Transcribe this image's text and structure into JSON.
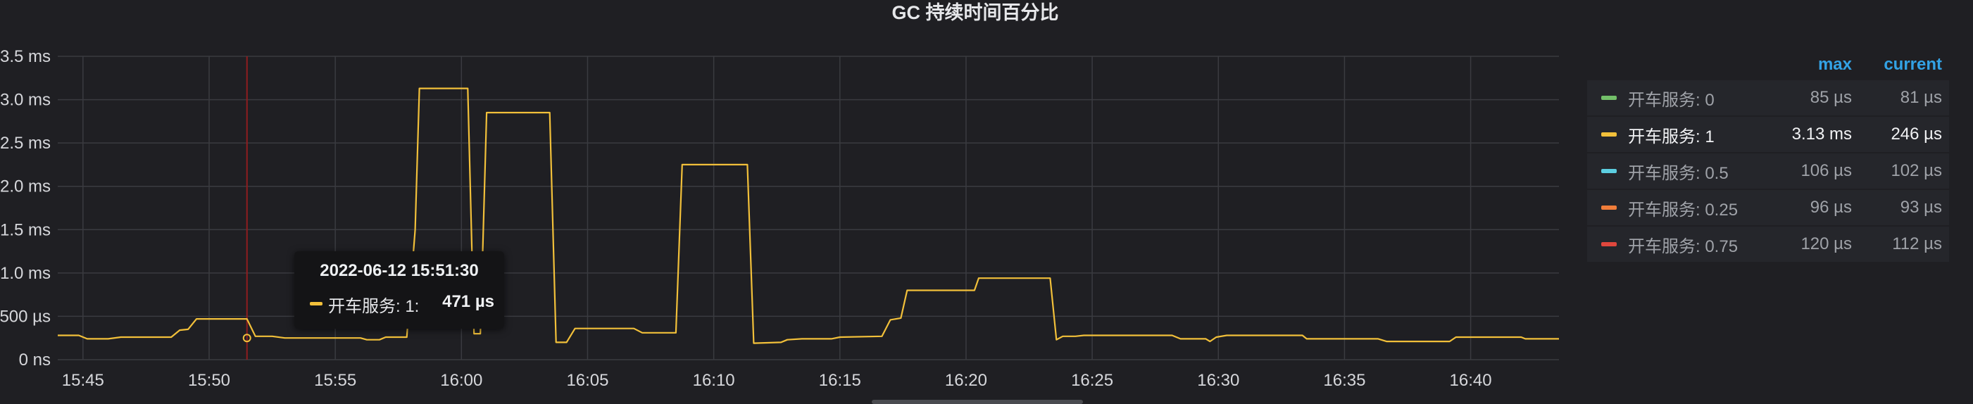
{
  "chart_data": {
    "type": "line",
    "title": "GC 持续时间百分比",
    "xlabel": "",
    "ylabel": "",
    "y_unit": "ms",
    "ylim": [
      0,
      3.5
    ],
    "y_ticks": [
      {
        "value": 0,
        "label": "0 ns"
      },
      {
        "value": 0.5,
        "label": "500 µs"
      },
      {
        "value": 1.0,
        "label": "1.0 ms"
      },
      {
        "value": 1.5,
        "label": "1.5 ms"
      },
      {
        "value": 2.0,
        "label": "2.0 ms"
      },
      {
        "value": 2.5,
        "label": "2.5 ms"
      },
      {
        "value": 3.0,
        "label": "3.0 ms"
      },
      {
        "value": 3.5,
        "label": "3.5 ms"
      }
    ],
    "xlim": [
      "15:44:00",
      "16:43:30"
    ],
    "x_ticks": [
      "15:45",
      "15:50",
      "15:55",
      "16:00",
      "16:05",
      "16:10",
      "16:15",
      "16:20",
      "16:25",
      "16:30",
      "16:35",
      "16:40"
    ],
    "grid": true,
    "legend_position": "right",
    "series": [
      {
        "name": "开车服务: 1",
        "color": "#f2c03a",
        "points": [
          [
            "15:44:00",
            0.28
          ],
          [
            "15:44:50",
            0.28
          ],
          [
            "15:45:10",
            0.24
          ],
          [
            "15:46:00",
            0.24
          ],
          [
            "15:46:30",
            0.26
          ],
          [
            "15:48:30",
            0.26
          ],
          [
            "15:48:50",
            0.34
          ],
          [
            "15:49:10",
            0.35
          ],
          [
            "15:49:30",
            0.47
          ],
          [
            "15:51:30",
            0.47
          ],
          [
            "15:51:50",
            0.27
          ],
          [
            "15:52:30",
            0.27
          ],
          [
            "15:53:00",
            0.25
          ],
          [
            "15:56:00",
            0.25
          ],
          [
            "15:56:15",
            0.23
          ],
          [
            "15:56:45",
            0.23
          ],
          [
            "15:57:00",
            0.26
          ],
          [
            "15:57:50",
            0.26
          ],
          [
            "15:58:10",
            1.5
          ],
          [
            "15:58:20",
            3.13
          ],
          [
            "16:00:15",
            3.13
          ],
          [
            "16:00:30",
            0.3
          ],
          [
            "16:00:45",
            0.3
          ],
          [
            "16:01:00",
            2.85
          ],
          [
            "16:03:30",
            2.85
          ],
          [
            "16:03:45",
            0.2
          ],
          [
            "16:04:10",
            0.2
          ],
          [
            "16:04:30",
            0.36
          ],
          [
            "16:06:50",
            0.36
          ],
          [
            "16:07:10",
            0.31
          ],
          [
            "16:08:30",
            0.31
          ],
          [
            "16:08:45",
            2.25
          ],
          [
            "16:11:20",
            2.25
          ],
          [
            "16:11:35",
            0.19
          ],
          [
            "16:12:40",
            0.2
          ],
          [
            "16:12:55",
            0.23
          ],
          [
            "16:13:30",
            0.24
          ],
          [
            "16:14:40",
            0.24
          ],
          [
            "16:15:00",
            0.26
          ],
          [
            "16:16:40",
            0.27
          ],
          [
            "16:17:00",
            0.46
          ],
          [
            "16:17:25",
            0.48
          ],
          [
            "16:17:40",
            0.8
          ],
          [
            "16:20:20",
            0.8
          ],
          [
            "16:20:30",
            0.94
          ],
          [
            "16:23:20",
            0.94
          ],
          [
            "16:23:35",
            0.23
          ],
          [
            "16:23:50",
            0.27
          ],
          [
            "16:24:20",
            0.27
          ],
          [
            "16:24:40",
            0.28
          ],
          [
            "16:28:10",
            0.28
          ],
          [
            "16:28:30",
            0.24
          ],
          [
            "16:29:30",
            0.24
          ],
          [
            "16:29:40",
            0.21
          ],
          [
            "16:29:55",
            0.26
          ],
          [
            "16:30:20",
            0.28
          ],
          [
            "16:33:20",
            0.28
          ],
          [
            "16:33:30",
            0.24
          ],
          [
            "16:36:20",
            0.24
          ],
          [
            "16:36:40",
            0.21
          ],
          [
            "16:39:10",
            0.21
          ],
          [
            "16:39:25",
            0.26
          ],
          [
            "16:42:00",
            0.26
          ],
          [
            "16:42:10",
            0.24
          ],
          [
            "16:43:30",
            0.24
          ]
        ]
      }
    ]
  },
  "crosshair": {
    "time": "15:51:30",
    "value": 0.25,
    "color": "#8f1d1f"
  },
  "tooltip": {
    "time": "2022-06-12 15:51:30",
    "series_label": "开车服务: 1:",
    "value": "471 µs",
    "swatch_color": "#f2c03a"
  },
  "legend": {
    "headers": {
      "max": "max",
      "current": "current"
    },
    "items": [
      {
        "name": "开车服务: 0",
        "color": "#73bf69",
        "max": "85 µs",
        "current": "81 µs",
        "active": false
      },
      {
        "name": "开车服务: 1",
        "color": "#f2c03a",
        "max": "3.13 ms",
        "current": "246 µs",
        "active": true
      },
      {
        "name": "开车服务: 0.5",
        "color": "#5ccee0",
        "max": "106 µs",
        "current": "102 µs",
        "active": false
      },
      {
        "name": "开车服务: 0.25",
        "color": "#f07d3a",
        "max": "96 µs",
        "current": "93 µs",
        "active": false
      },
      {
        "name": "开车服务: 0.75",
        "color": "#e0473d",
        "max": "120 µs",
        "current": "112 µs",
        "active": false
      }
    ]
  }
}
